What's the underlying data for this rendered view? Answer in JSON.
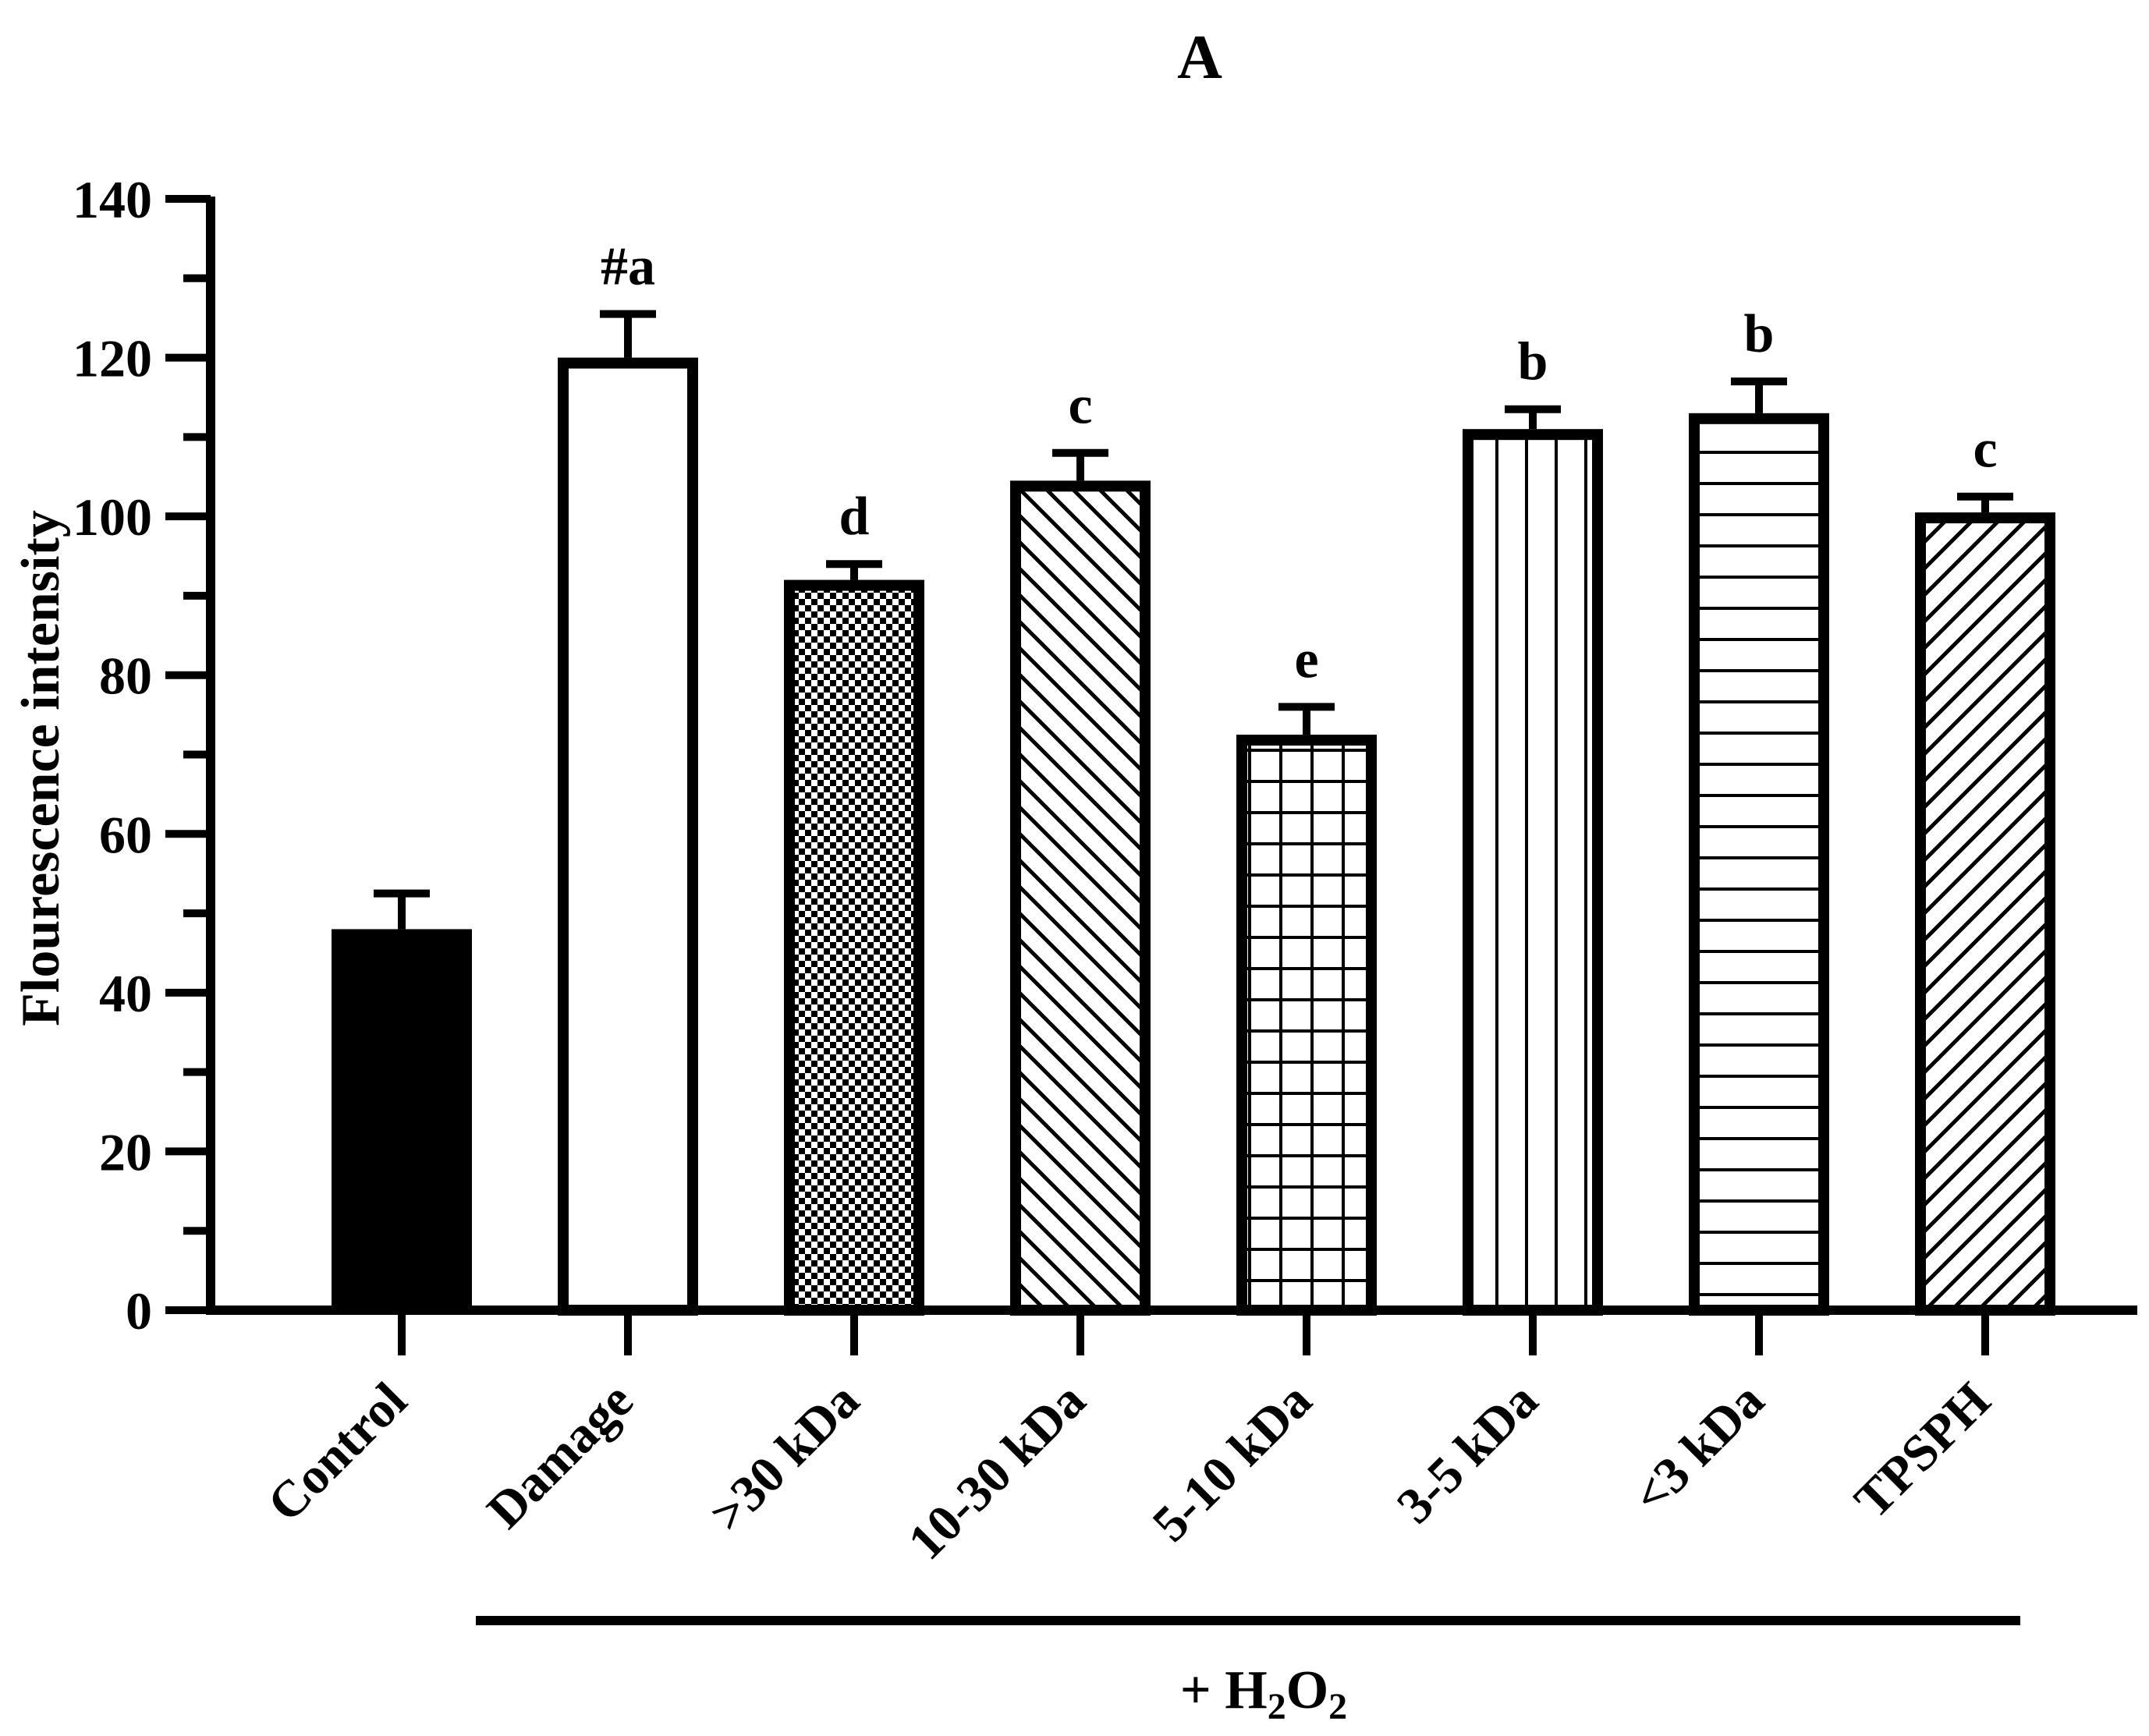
{
  "chart_data": {
    "type": "bar",
    "panel_label": "A",
    "ylabel": "Flourescence intensity",
    "xlabel": "",
    "ylim": [
      0,
      140
    ],
    "y_major_ticks": [
      0,
      20,
      40,
      60,
      80,
      100,
      120,
      140
    ],
    "y_minor_step": 10,
    "categories": [
      "Control",
      "Damage",
      ">30 kDa",
      "10-30 kDa",
      "5-10 kDa",
      "3-5 kDa",
      "<3 kDa",
      "TPSPH"
    ],
    "values": [
      48,
      120,
      92,
      104.5,
      72.5,
      111,
      113,
      100.5
    ],
    "errors": [
      4.5,
      5.5,
      2,
      3.5,
      3.5,
      2.5,
      4,
      2
    ],
    "fill_patterns": [
      "solid",
      "empty",
      "checker",
      "diagonal-back",
      "grid",
      "vertical",
      "horizontal",
      "diagonal-forward"
    ],
    "significance_letters": [
      "",
      "#a",
      "d",
      "c",
      "e",
      "b",
      "b",
      "c"
    ],
    "group_label": {
      "prefix": "+ H",
      "sub1": "2",
      "mid": "O",
      "sub2": "2"
    },
    "group_span": [
      "Damage",
      "TPSPH"
    ]
  }
}
